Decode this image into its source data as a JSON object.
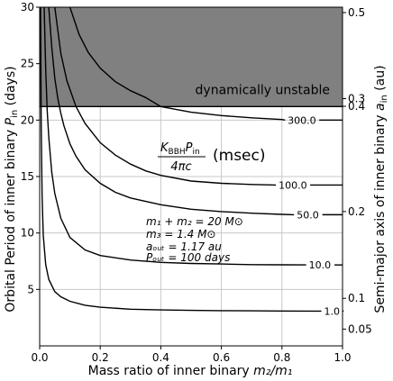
{
  "chart_data": {
    "type": "line",
    "xlabel_main": "Mass ratio of inner binary ",
    "xlabel_math": "m₂/m₁",
    "ylabel_main": "Orbital Period of inner binary ",
    "ylabel_sym": "P",
    "ylabel_sub": "in",
    "ylabel_unit": " (days)",
    "y2label_main": "Semi-major axis of inner binary ",
    "y2label_sym": "a",
    "y2label_sub": "in",
    "y2label_unit": " (au)",
    "xlim": [
      0.0,
      1.0
    ],
    "ylim": [
      0,
      30
    ],
    "xticks": [
      "0.0",
      "0.2",
      "0.4",
      "0.6",
      "0.8",
      "1.0"
    ],
    "yticks": [
      "5",
      "10",
      "15",
      "20",
      "25",
      "30"
    ],
    "y2ticks": [
      {
        "label": "0.05",
        "p": 1.49
      },
      {
        "label": "0.1",
        "p": 4.21
      },
      {
        "label": "0.2",
        "p": 11.9
      },
      {
        "label": "0.3",
        "p": 21.9
      },
      {
        "label": "0.4",
        "p": 33.7
      },
      {
        "label": "0.5",
        "p": 47.1
      }
    ],
    "grid": true,
    "unstable_region": {
      "p_min": 21.2,
      "label": "dynamically unstable",
      "color": "#808080"
    },
    "contour_labels": [
      "1.0",
      "10.0",
      "50.0",
      "100.0",
      "300.0"
    ],
    "series": [
      {
        "contour": "1.0",
        "x": [
          0.003,
          0.005,
          0.008,
          0.012,
          0.02,
          0.03,
          0.05,
          0.07,
          0.1,
          0.15,
          0.2,
          0.3,
          0.4,
          0.5,
          0.6,
          0.7,
          0.8,
          0.9,
          0.93
        ],
        "y": [
          30,
          19.8,
          13.3,
          9.8,
          7.2,
          5.9,
          4.8,
          4.35,
          3.95,
          3.6,
          3.42,
          3.25,
          3.18,
          3.14,
          3.12,
          3.1,
          3.09,
          3.08,
          3.08
        ]
      },
      {
        "contour": "10.0",
        "x": [
          0.015,
          0.02,
          0.025,
          0.03,
          0.04,
          0.05,
          0.07,
          0.1,
          0.15,
          0.2,
          0.3,
          0.4,
          0.5,
          0.6,
          0.7,
          0.8,
          0.88
        ],
        "y": [
          30,
          24.5,
          20.8,
          18.5,
          15.4,
          13.5,
          11.3,
          9.6,
          8.5,
          8.0,
          7.6,
          7.4,
          7.3,
          7.25,
          7.2,
          7.18,
          7.17
        ]
      },
      {
        "contour": "50.0",
        "x": [
          0.03,
          0.04,
          0.05,
          0.06,
          0.07,
          0.08,
          0.1,
          0.12,
          0.15,
          0.2,
          0.25,
          0.3,
          0.4,
          0.5,
          0.6,
          0.7,
          0.8,
          0.84
        ],
        "y": [
          30,
          26.5,
          23.7,
          21.9,
          20.6,
          19.5,
          17.9,
          16.8,
          15.6,
          14.4,
          13.6,
          13.1,
          12.5,
          12.1,
          11.9,
          11.75,
          11.65,
          11.62
        ]
      },
      {
        "contour": "100.0",
        "x": [
          0.05,
          0.07,
          0.09,
          0.12,
          0.15,
          0.2,
          0.25,
          0.3,
          0.35,
          0.4,
          0.5,
          0.6,
          0.7,
          0.78
        ],
        "y": [
          30,
          25.9,
          23.5,
          21.2,
          19.7,
          18.0,
          16.9,
          16.1,
          15.5,
          15.1,
          14.6,
          14.4,
          14.3,
          14.25
        ]
      },
      {
        "contour": "300.0",
        "x": [
          0.1,
          0.13,
          0.16,
          0.2,
          0.25,
          0.3,
          0.35,
          0.4,
          0.5,
          0.6,
          0.7,
          0.8,
          0.81
        ],
        "y": [
          30,
          27.6,
          26.0,
          24.6,
          23.4,
          22.6,
          22.0,
          21.2,
          20.7,
          20.4,
          20.2,
          20.05,
          20.0
        ]
      }
    ],
    "annotation_lines": [
      "m₁ + m₂ = 20 M⊙",
      "m₃ = 1.4 M⊙",
      "aₒᵤₜ = 1.17 au",
      "Pₒᵤₜ = 100 days"
    ],
    "formula_numerator": "K",
    "formula_num_sub": "BBH",
    "formula_num_p": "P",
    "formula_num_p_sub": "in",
    "formula_denominator": "4πc",
    "formula_unit": "(msec)"
  }
}
